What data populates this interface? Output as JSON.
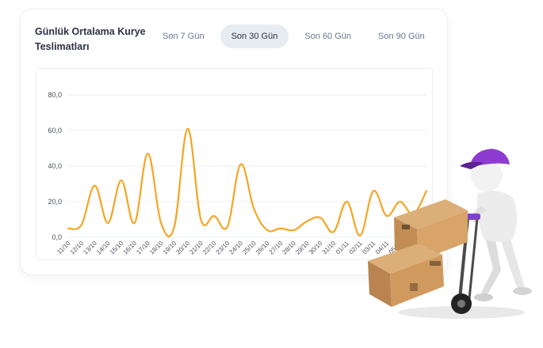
{
  "card": {
    "title": "Günlük Ortalama Kurye Teslimatları",
    "tabs": [
      {
        "label": "Son 7 Gün",
        "active": false
      },
      {
        "label": "Son 30 Gün",
        "active": true
      },
      {
        "label": "Son 60 Gün",
        "active": false
      },
      {
        "label": "Son 90 Gün",
        "active": false
      }
    ]
  },
  "chart_data": {
    "type": "line",
    "title": "",
    "xlabel": "",
    "ylabel": "",
    "ylim": [
      0,
      80
    ],
    "yticks": [
      "0,0",
      "20,0",
      "40,0",
      "60,0",
      "80,0"
    ],
    "grid": true,
    "line_color": "#f5a623",
    "x": [
      "11/10",
      "12/10",
      "13/10",
      "14/10",
      "15/10",
      "16/10",
      "17/10",
      "18/10",
      "19/10",
      "20/10",
      "21/10",
      "22/10",
      "23/10",
      "24/10",
      "25/10",
      "26/10",
      "27/10",
      "28/10",
      "29/10",
      "30/10",
      "31/10",
      "01/11",
      "02/11",
      "03/11",
      "04/11",
      "05/11",
      "06/11",
      "07/11"
    ],
    "series": [
      {
        "values": [
          5,
          7,
          29,
          8,
          32,
          8,
          47,
          8,
          6,
          61,
          10,
          12,
          6,
          41,
          16,
          4,
          5,
          4,
          9,
          11,
          3,
          20,
          1,
          26,
          12,
          20,
          13,
          26
        ]
      }
    ]
  },
  "illustration": {
    "description_icon": "delivery-courier-icon",
    "cap_color": "#8e3bd1",
    "box_color": "#c9955a"
  }
}
